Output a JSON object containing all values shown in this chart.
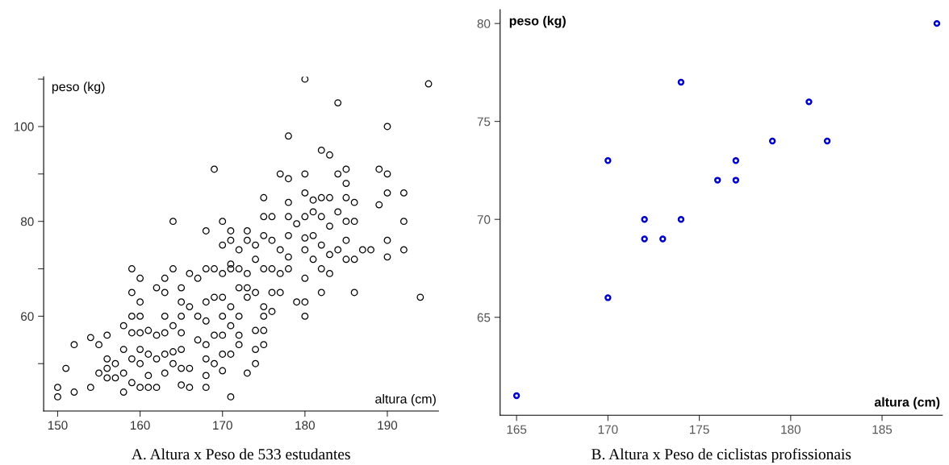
{
  "chart_data": [
    {
      "type": "scatter",
      "title": "A. Altura x Peso de 533 estudantes",
      "xlabel": "altura (cm)",
      "ylabel": "peso (kg)",
      "marker": "circle",
      "grid": false,
      "legend": false,
      "xlim": [
        148.3,
        196.2
      ],
      "xticks": [
        150,
        160,
        170,
        180,
        190
      ],
      "ylim": [
        40,
        110.5
      ],
      "yticks": [
        {
          "value": 50,
          "label": null
        },
        60,
        {
          "value": 70,
          "label": null
        },
        80,
        {
          "value": 90,
          "label": null
        },
        100,
        {
          "value": 110,
          "label": null
        }
      ],
      "series": [
        {
          "color": "#000000",
          "x": [
            150,
            150,
            151,
            152,
            152,
            154,
            154,
            155,
            155,
            156,
            156,
            156,
            156,
            157,
            157,
            158,
            158,
            158,
            158,
            159,
            159,
            159,
            159,
            159,
            159,
            160,
            160,
            160,
            160,
            160,
            160,
            160,
            161,
            161,
            161,
            161,
            162,
            162,
            162,
            162,
            163,
            163,
            163,
            163,
            163,
            163,
            164,
            164,
            164,
            164,
            164,
            165,
            165,
            165,
            165,
            165,
            165,
            165,
            166,
            166,
            166,
            166,
            167,
            167,
            167,
            168,
            168,
            168,
            168,
            168,
            168,
            168,
            168,
            169,
            169,
            169,
            169,
            169,
            170,
            170,
            170,
            170,
            170,
            170,
            170,
            170,
            171,
            180,
            195,
            184,
            190,
            178,
            182,
            183,
            177,
            178,
            180,
            184,
            185,
            185,
            189,
            190,
            190,
            192,
            175,
            178,
            180,
            181,
            182,
            183,
            185,
            186,
            189,
            175,
            176,
            178,
            179,
            180,
            181,
            182,
            183,
            184,
            185,
            186,
            171,
            171,
            172,
            173,
            173,
            174,
            175,
            176,
            178,
            180,
            180,
            181,
            182,
            183,
            184,
            185,
            186,
            187,
            188,
            190,
            190,
            192,
            192,
            177,
            178,
            181,
            182,
            183,
            185,
            186,
            182,
            194,
            171,
            171,
            172,
            173,
            174,
            174,
            175,
            176,
            176,
            177,
            178,
            180,
            180,
            180,
            179,
            177,
            175,
            175,
            176,
            174,
            175,
            175,
            174,
            174,
            173,
            172,
            172,
            171,
            171,
            171,
            172,
            173,
            172,
            173
          ],
          "values": [
            45,
            43,
            49,
            44,
            54,
            45,
            55.5,
            54,
            48,
            56,
            51,
            49,
            47,
            50,
            47,
            58,
            53,
            48,
            44,
            70,
            65,
            60,
            56.5,
            51,
            46,
            68,
            63,
            60,
            56.5,
            53,
            50,
            45,
            57,
            52,
            47.5,
            45,
            66,
            56,
            51,
            45,
            68,
            65,
            60,
            56.5,
            52,
            48,
            80,
            70,
            58,
            52.5,
            50,
            66,
            63,
            60,
            56.5,
            53,
            49,
            45.5,
            69,
            62,
            49,
            45,
            68,
            60,
            55,
            78,
            70,
            63,
            59,
            54,
            51,
            47.5,
            45,
            91,
            70,
            64,
            56,
            50,
            80,
            75,
            69,
            64,
            60,
            56,
            52,
            48.5,
            43,
            110,
            109,
            105,
            100,
            98,
            95,
            94,
            90,
            89,
            90,
            90,
            91,
            88,
            91,
            90,
            86,
            86,
            85,
            84,
            86,
            84.5,
            85,
            85,
            85,
            84,
            83.5,
            81,
            81,
            81,
            79.5,
            81,
            82,
            81,
            79,
            82,
            80,
            80,
            78,
            76,
            74,
            78,
            76,
            75,
            77,
            76,
            77,
            76.5,
            74,
            77,
            75,
            73,
            74,
            76,
            72,
            74,
            74,
            76,
            72.5,
            80,
            74,
            74,
            72.5,
            72,
            70,
            69,
            72,
            65,
            65,
            64,
            70,
            71,
            70,
            69,
            72,
            65,
            70,
            70,
            65,
            69,
            70,
            68,
            63,
            60,
            63,
            65,
            62,
            60,
            61,
            57,
            57,
            54,
            53,
            50,
            48,
            56,
            54,
            58,
            52,
            62,
            60,
            66,
            66,
            64
          ]
        }
      ]
    },
    {
      "type": "scatter",
      "title": "B. Altura x Peso de ciclistas profissionais",
      "xlabel": "altura (cm)",
      "ylabel": "peso (kg)",
      "marker": "circle",
      "grid": false,
      "legend": false,
      "xlim": [
        164.1,
        188.3
      ],
      "xticks": [
        165,
        170,
        175,
        180,
        185
      ],
      "ylim": [
        60,
        80.7
      ],
      "yticks": [
        65,
        70,
        75,
        80
      ],
      "series": [
        {
          "color": "#0000cc",
          "x": [
            165,
            170,
            170,
            172,
            172,
            173,
            174,
            174,
            176,
            177,
            177,
            179,
            181,
            182,
            188
          ],
          "values": [
            61,
            73,
            66,
            70,
            69,
            69,
            77,
            70,
            72,
            73,
            72,
            74,
            76,
            74,
            80
          ]
        }
      ]
    }
  ]
}
